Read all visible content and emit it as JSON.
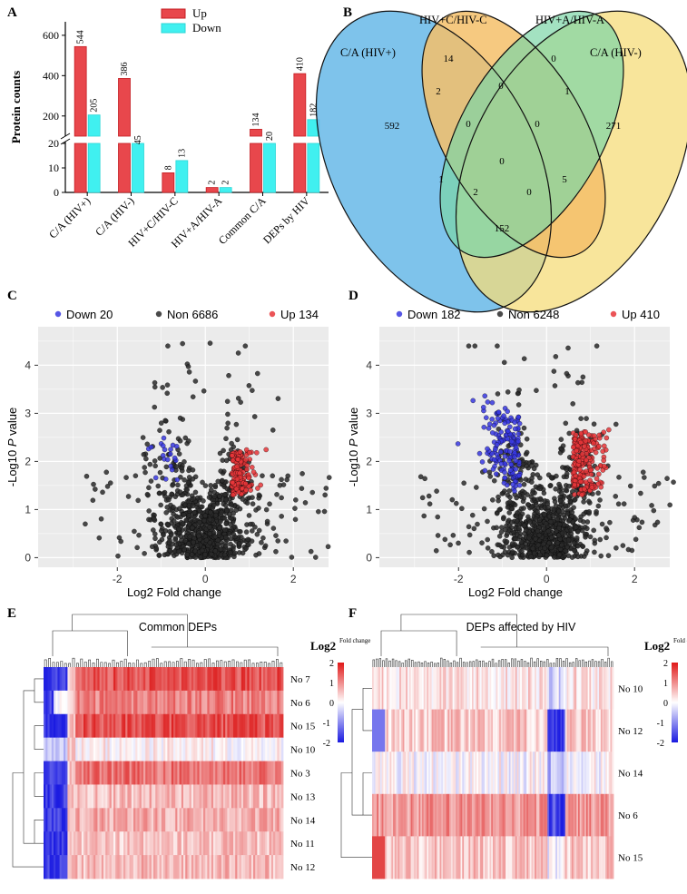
{
  "panels": {
    "A": "A",
    "B": "B",
    "C": "C",
    "D": "D",
    "E": "E",
    "F": "F"
  },
  "colors": {
    "up": "#e8474c",
    "down": "#40f0f0",
    "volcano_up": "#e8363a",
    "volcano_down": "#3838e0",
    "volcano_non": "#2a2a2a",
    "venn_ca_hivp": "#67b8e8",
    "venn_hivc": "#f5c06a",
    "venn_hiva": "#7cd6a6",
    "venn_ca_hivm": "#f6dc7a"
  },
  "chart_data": [
    {
      "type": "bar",
      "panel": "A",
      "ylabel": "Protein counts",
      "categories": [
        "C/A (HIV+)",
        "C/A (HIV-)",
        "HIV+C/HIV-C",
        "HIV+A/HIV-A",
        "Common C/A",
        "DEPs by HIV"
      ],
      "series": [
        {
          "name": "Up",
          "values": [
            544,
            386,
            8,
            2,
            134,
            410
          ]
        },
        {
          "name": "Down",
          "values": [
            205,
            45,
            13,
            2,
            20,
            182
          ]
        }
      ],
      "y_lower_ticks": [
        "0",
        "10",
        "20"
      ],
      "y_upper_ticks": [
        "200",
        "400",
        "600"
      ],
      "axis_break": [
        20,
        100
      ]
    },
    {
      "type": "venn",
      "panel": "B",
      "sets": [
        "C/A (HIV+)",
        "HIV+C/HIV-C",
        "HIV+A/HIV-A",
        "C/A (HIV-)"
      ],
      "regions": [
        {
          "key": "ca_hivp_only",
          "value": "592"
        },
        {
          "key": "hivc_only",
          "value": "14"
        },
        {
          "key": "hiva_only",
          "value": "0"
        },
        {
          "key": "ca_hivm_only",
          "value": "271"
        },
        {
          "key": "ca_hivp_hivc",
          "value": "2"
        },
        {
          "key": "hivc_hiva",
          "value": "0"
        },
        {
          "key": "hiva_ca_hivm",
          "value": "1"
        },
        {
          "key": "ca_hivp_hivc_hiva",
          "value": "0"
        },
        {
          "key": "hivc_hiva_ca_hivm",
          "value": "0"
        },
        {
          "key": "ca_hivp_hiva",
          "value": "1"
        },
        {
          "key": "all_four",
          "value": "0"
        },
        {
          "key": "hivc_ca_hivm",
          "value": "5"
        },
        {
          "key": "ca_hivp_hiva_ca_hivm",
          "value": "2"
        },
        {
          "key": "ca_hivp_hivc_ca_hivm",
          "value": "0"
        },
        {
          "key": "ca_hivp_ca_hivm",
          "value": "152"
        }
      ]
    },
    {
      "type": "scatter",
      "panel": "C",
      "xlabel": "Log2 Fold change",
      "ylabel_prefix": "-Log10 ",
      "ylabel_italic": "P",
      "ylabel_suffix": " value",
      "xlim": [
        -3.8,
        2.8
      ],
      "ylim": [
        -0.2,
        4.8
      ],
      "xticks": [
        "-2",
        "0",
        "2"
      ],
      "yticks": [
        "0",
        "1",
        "2",
        "3",
        "4"
      ],
      "legend": [
        {
          "label": "Down 20",
          "group": "down"
        },
        {
          "label": "Non 6686",
          "group": "non"
        },
        {
          "label": "Up 134",
          "group": "up"
        }
      ],
      "counts": {
        "down": 20,
        "non": 6686,
        "up": 134
      }
    },
    {
      "type": "scatter",
      "panel": "D",
      "xlabel": "Log2 Fold change",
      "ylabel_prefix": "-Log10 ",
      "ylabel_italic": "P",
      "ylabel_suffix": " value",
      "xlim": [
        -3.8,
        2.8
      ],
      "ylim": [
        -0.2,
        4.8
      ],
      "xticks": [
        "-2",
        "0",
        "2"
      ],
      "yticks": [
        "0",
        "1",
        "2",
        "3",
        "4"
      ],
      "legend": [
        {
          "label": "Down 182",
          "group": "down"
        },
        {
          "label": "Non 6248",
          "group": "non"
        },
        {
          "label": "Up 410",
          "group": "up"
        }
      ],
      "counts": {
        "down": 182,
        "non": 6248,
        "up": 410
      }
    },
    {
      "type": "heatmap",
      "panel": "E",
      "title": "Common DEPs",
      "scale_title": "Log2",
      "scale_subtitle": "Fold change",
      "scale_ticks": [
        "2",
        "1",
        "0",
        "-1",
        "-2"
      ],
      "rows": [
        "No 7",
        "No 6",
        "No 15",
        "No 10",
        "No 3",
        "No 13",
        "No 14",
        "No 11",
        "No 12"
      ]
    },
    {
      "type": "heatmap",
      "panel": "F",
      "title": "DEPs affected by HIV",
      "scale_title": "Log2",
      "scale_subtitle": "Fold change",
      "scale_ticks": [
        "2",
        "1",
        "0",
        "-1",
        "-2"
      ],
      "rows": [
        "No 10",
        "No 12",
        "No 14",
        "No 6",
        "No 15"
      ]
    }
  ]
}
